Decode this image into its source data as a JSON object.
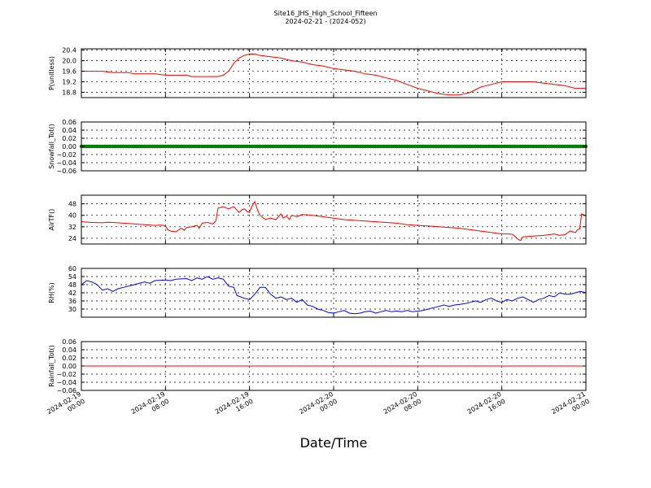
{
  "figure": {
    "title": "Site16_JHS_High_School_Fifteen",
    "subtitle": "2024-02-21 - (2024-052)",
    "xlabel": "Date/Time"
  },
  "chart_data": {
    "type": "line",
    "x_range": [
      "2024-02-19 00:00",
      "2024-02-21 00:00"
    ],
    "x_ticks": [
      {
        "line1": "2024-02-19",
        "line2": "00:00",
        "hour": 0
      },
      {
        "line1": "2024-02-19",
        "line2": "08:00",
        "hour": 8
      },
      {
        "line1": "2024-02-19",
        "line2": "16:00",
        "hour": 16
      },
      {
        "line1": "2024-02-20",
        "line2": "00:00",
        "hour": 24
      },
      {
        "line1": "2024-02-20",
        "line2": "08:00",
        "hour": 32
      },
      {
        "line1": "2024-02-20",
        "line2": "16:00",
        "hour": 40
      },
      {
        "line1": "2024-02-21",
        "line2": "00:00",
        "hour": 48
      }
    ],
    "grid": true,
    "panels": [
      {
        "ylabel": "P(unitless)",
        "ylim": [
          18.6,
          20.45
        ],
        "yticks": [
          "20.4",
          "20.0",
          "19.6",
          "19.2",
          "18.8"
        ],
        "ytick_values": [
          20.4,
          20.0,
          19.6,
          19.2,
          18.8
        ],
        "color": "#ff0000",
        "marker": "line",
        "points": [
          [
            0,
            19.6
          ],
          [
            2,
            19.6
          ],
          [
            3,
            19.55
          ],
          [
            4.5,
            19.55
          ],
          [
            5,
            19.5
          ],
          [
            7,
            19.5
          ],
          [
            8,
            19.45
          ],
          [
            10,
            19.45
          ],
          [
            10.5,
            19.4
          ],
          [
            12,
            19.4
          ],
          [
            13,
            19.4
          ],
          [
            13.5,
            19.45
          ],
          [
            14,
            19.6
          ],
          [
            14.5,
            19.9
          ],
          [
            15,
            20.1
          ],
          [
            15.5,
            20.2
          ],
          [
            16,
            20.25
          ],
          [
            16.5,
            20.25
          ],
          [
            17,
            20.2
          ],
          [
            18,
            20.15
          ],
          [
            19,
            20.1
          ],
          [
            20,
            20.0
          ],
          [
            21,
            19.95
          ],
          [
            22,
            19.85
          ],
          [
            23,
            19.8
          ],
          [
            24,
            19.7
          ],
          [
            25,
            19.65
          ],
          [
            26,
            19.6
          ],
          [
            27,
            19.5
          ],
          [
            28,
            19.45
          ],
          [
            29,
            19.35
          ],
          [
            30,
            19.25
          ],
          [
            31,
            19.1
          ],
          [
            32,
            18.95
          ],
          [
            33,
            18.85
          ],
          [
            34,
            18.75
          ],
          [
            35,
            18.7
          ],
          [
            36,
            18.7
          ],
          [
            37,
            18.8
          ],
          [
            38,
            19.0
          ],
          [
            39,
            19.1
          ],
          [
            40,
            19.2
          ],
          [
            41,
            19.2
          ],
          [
            43,
            19.2
          ],
          [
            44,
            19.15
          ],
          [
            45,
            19.1
          ],
          [
            46,
            19.05
          ],
          [
            47,
            18.95
          ],
          [
            48,
            18.95
          ]
        ]
      },
      {
        "ylabel": "Snowfall_Tot()",
        "ylim": [
          -0.06,
          0.06
        ],
        "yticks": [
          "0.06",
          "0.04",
          "0.02",
          "0.00",
          "−0.02",
          "−0.04",
          "−0.06"
        ],
        "ytick_values": [
          0.06,
          0.04,
          0.02,
          0.0,
          -0.02,
          -0.04,
          -0.06
        ],
        "color": "#008000",
        "marker": "dots",
        "points": [
          [
            0,
            0
          ],
          [
            48,
            0
          ]
        ]
      },
      {
        "ylabel": "AirTF()",
        "ylim": [
          20,
          54
        ],
        "yticks": [
          "48",
          "40",
          "32",
          "24"
        ],
        "ytick_values": [
          48,
          40,
          32,
          24
        ],
        "color": "#ff0000",
        "marker": "line",
        "points": [
          [
            0,
            35.5
          ],
          [
            1,
            35
          ],
          [
            2,
            34.8
          ],
          [
            2.5,
            35.2
          ],
          [
            3,
            35
          ],
          [
            4,
            34.5
          ],
          [
            5,
            34
          ],
          [
            6,
            33.5
          ],
          [
            7,
            33
          ],
          [
            7.5,
            33.2
          ],
          [
            8,
            32.8
          ],
          [
            8.2,
            30
          ],
          [
            8.5,
            29
          ],
          [
            9,
            28.5
          ],
          [
            9.3,
            30
          ],
          [
            9.5,
            31
          ],
          [
            9.8,
            29.5
          ],
          [
            10,
            31.5
          ],
          [
            10.5,
            32
          ],
          [
            11,
            33
          ],
          [
            11.2,
            31
          ],
          [
            11.5,
            34.5
          ],
          [
            12,
            35
          ],
          [
            12.5,
            34
          ],
          [
            12.8,
            36
          ],
          [
            13,
            45
          ],
          [
            13.5,
            46
          ],
          [
            14,
            44.5
          ],
          [
            14.5,
            46
          ],
          [
            15,
            42
          ],
          [
            15.3,
            44
          ],
          [
            15.5,
            44.5
          ],
          [
            15.8,
            42.5
          ],
          [
            16,
            42
          ],
          [
            16.2,
            46
          ],
          [
            16.5,
            49.5
          ],
          [
            16.8,
            43
          ],
          [
            17,
            40
          ],
          [
            17.5,
            37
          ],
          [
            18,
            38
          ],
          [
            18.5,
            37
          ],
          [
            19,
            41
          ],
          [
            19.2,
            38
          ],
          [
            19.5,
            39.5
          ],
          [
            19.8,
            37
          ],
          [
            20,
            40
          ],
          [
            20.5,
            39
          ],
          [
            21,
            40.5
          ],
          [
            22,
            40
          ],
          [
            23,
            39
          ],
          [
            24,
            38
          ],
          [
            25,
            37
          ],
          [
            26,
            36.5
          ],
          [
            27,
            36
          ],
          [
            28,
            35.5
          ],
          [
            29,
            35
          ],
          [
            30,
            34.5
          ],
          [
            31,
            33.5
          ],
          [
            32,
            33
          ],
          [
            33,
            32.5
          ],
          [
            34,
            32
          ],
          [
            35,
            31.5
          ],
          [
            36,
            31
          ],
          [
            37,
            30
          ],
          [
            38,
            29
          ],
          [
            39,
            28
          ],
          [
            39.5,
            27.5
          ],
          [
            40,
            27
          ],
          [
            40.5,
            27
          ],
          [
            41,
            26.8
          ],
          [
            41.3,
            25
          ],
          [
            41.6,
            23
          ],
          [
            41.8,
            22.5
          ],
          [
            42,
            25
          ],
          [
            43,
            25.5
          ],
          [
            44,
            26
          ],
          [
            45,
            27
          ],
          [
            45.5,
            26
          ],
          [
            46,
            26.5
          ],
          [
            46.5,
            29
          ],
          [
            47,
            28
          ],
          [
            47.2,
            30
          ],
          [
            47.4,
            30.5
          ],
          [
            47.6,
            41
          ],
          [
            48,
            39.5
          ]
        ]
      },
      {
        "ylabel": "RH(%)",
        "ylim": [
          24,
          60
        ],
        "yticks": [
          "60",
          "54",
          "48",
          "42",
          "36",
          "30"
        ],
        "ytick_values": [
          60,
          54,
          48,
          42,
          36,
          30
        ],
        "color": "#0000ff",
        "marker": "line",
        "points": [
          [
            0,
            48
          ],
          [
            0.5,
            51
          ],
          [
            1,
            50
          ],
          [
            1.5,
            48
          ],
          [
            2,
            44
          ],
          [
            2.5,
            45
          ],
          [
            3,
            43
          ],
          [
            3.5,
            45
          ],
          [
            4,
            46
          ],
          [
            5,
            48
          ],
          [
            6,
            50
          ],
          [
            6.5,
            49
          ],
          [
            7,
            51
          ],
          [
            8,
            51.5
          ],
          [
            8.5,
            51
          ],
          [
            9,
            52
          ],
          [
            10,
            52.5
          ],
          [
            10.5,
            51
          ],
          [
            11,
            53
          ],
          [
            11.5,
            52
          ],
          [
            12,
            54
          ],
          [
            12.5,
            52
          ],
          [
            13,
            53
          ],
          [
            13.5,
            52
          ],
          [
            14,
            47
          ],
          [
            14.5,
            46
          ],
          [
            14.8,
            40
          ],
          [
            15.5,
            38
          ],
          [
            16,
            37
          ],
          [
            16.5,
            41
          ],
          [
            17,
            46
          ],
          [
            17.5,
            46
          ],
          [
            18,
            41
          ],
          [
            18.5,
            38
          ],
          [
            19,
            39
          ],
          [
            19.5,
            37
          ],
          [
            20,
            38
          ],
          [
            20.5,
            35
          ],
          [
            21,
            37
          ],
          [
            21.5,
            33
          ],
          [
            22,
            32
          ],
          [
            22.5,
            30
          ],
          [
            23,
            29
          ],
          [
            23.5,
            27.5
          ],
          [
            24,
            27
          ],
          [
            24.5,
            28
          ],
          [
            25,
            29
          ],
          [
            25.5,
            27
          ],
          [
            26,
            26.5
          ],
          [
            26.5,
            27
          ],
          [
            27,
            28
          ],
          [
            27.5,
            28.5
          ],
          [
            28,
            27
          ],
          [
            28.5,
            28
          ],
          [
            29,
            29
          ],
          [
            29.5,
            28
          ],
          [
            30,
            28.5
          ],
          [
            30.5,
            28
          ],
          [
            31,
            29
          ],
          [
            31.5,
            28
          ],
          [
            32,
            28.5
          ],
          [
            32.5,
            29
          ],
          [
            33,
            30
          ],
          [
            33.5,
            31
          ],
          [
            34,
            32
          ],
          [
            34.5,
            33
          ],
          [
            35,
            32
          ],
          [
            35.5,
            33
          ],
          [
            36,
            33.5
          ],
          [
            36.5,
            34
          ],
          [
            37,
            35
          ],
          [
            37.5,
            36
          ],
          [
            38,
            35
          ],
          [
            38.5,
            37
          ],
          [
            39,
            38
          ],
          [
            39.5,
            36
          ],
          [
            40,
            35
          ],
          [
            40.5,
            37
          ],
          [
            41,
            36
          ],
          [
            41.5,
            38
          ],
          [
            42,
            39
          ],
          [
            42.5,
            37
          ],
          [
            43,
            35
          ],
          [
            43.5,
            37
          ],
          [
            44,
            38
          ],
          [
            44.5,
            40
          ],
          [
            45,
            39
          ],
          [
            45.5,
            42
          ],
          [
            46,
            41
          ],
          [
            46.5,
            41
          ],
          [
            47,
            42
          ],
          [
            47.5,
            43
          ],
          [
            48,
            42
          ]
        ]
      },
      {
        "ylabel": "Rainfall_Tot()",
        "ylim": [
          -0.06,
          0.06
        ],
        "yticks": [
          "0.06",
          "0.04",
          "0.02",
          "0.00",
          "−0.02",
          "−0.04",
          "−0.06"
        ],
        "ytick_values": [
          0.06,
          0.04,
          0.02,
          0.0,
          -0.02,
          -0.04,
          -0.06
        ],
        "color": "#ff0000",
        "marker": "line",
        "points": [
          [
            0,
            0
          ],
          [
            48,
            0
          ]
        ]
      }
    ]
  }
}
